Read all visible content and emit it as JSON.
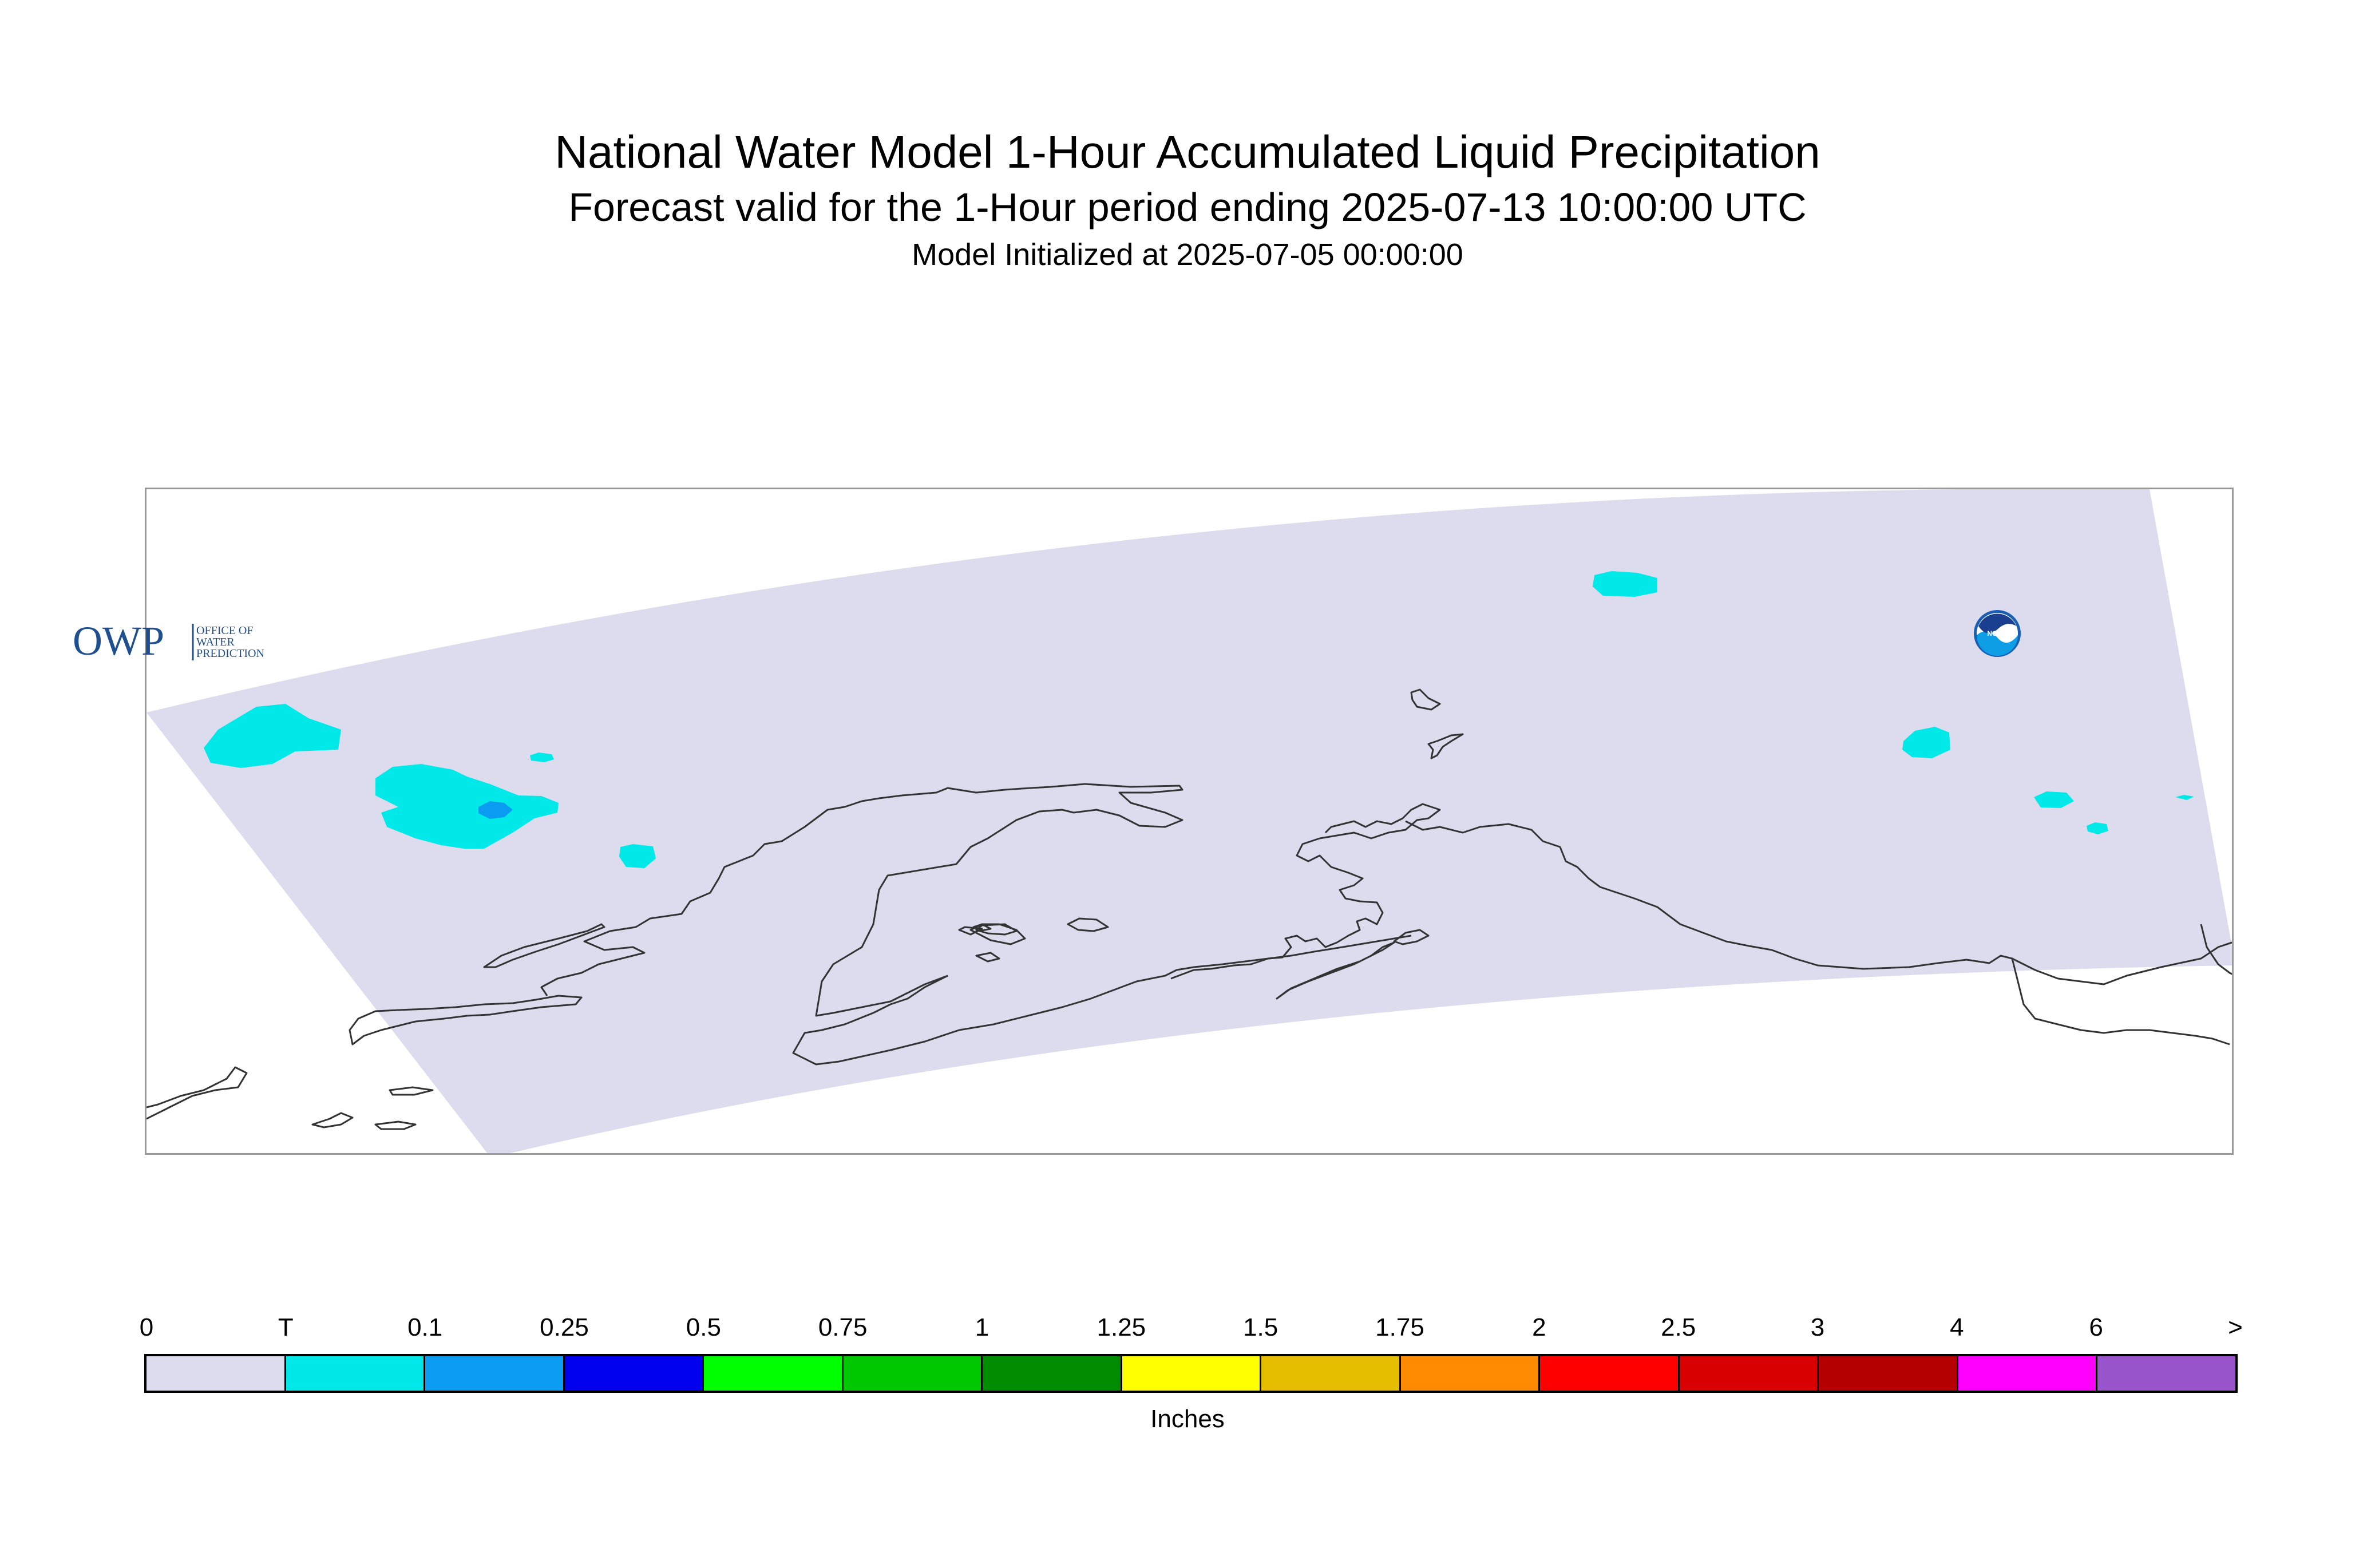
{
  "header": {
    "title": "National Water Model 1-Hour Accumulated Liquid Precipitation",
    "subtitle": "Forecast valid for the 1-Hour period ending 2025-07-13 10:00:00 UTC",
    "init": "Model Initialized at 2025-07-05 00:00:00"
  },
  "map": {
    "domain_fill_color": "#dcdcee",
    "coastline_color": "#333333",
    "precip_areas": [
      {
        "name": "west-coast-cell",
        "category": "T",
        "color": "#00e8e8"
      },
      {
        "name": "central-west-cell",
        "category": "T",
        "color": "#00e8e8"
      },
      {
        "name": "central-west-core",
        "category": "0.1",
        "color": "#0a9cf0"
      },
      {
        "name": "small-west-cell",
        "category": "T",
        "color": "#00e8e8"
      },
      {
        "name": "tiny-west-cell",
        "category": "T",
        "color": "#00e8e8"
      },
      {
        "name": "north-cell",
        "category": "T",
        "color": "#00e8e8"
      },
      {
        "name": "east-cell-1",
        "category": "T",
        "color": "#00e8e8"
      },
      {
        "name": "east-cell-2",
        "category": "T",
        "color": "#00e8e8"
      },
      {
        "name": "east-cell-3",
        "category": "T",
        "color": "#00e8e8"
      },
      {
        "name": "east-cell-4",
        "category": "T",
        "color": "#00e8e8"
      }
    ]
  },
  "logos": {
    "owp_mark": "OWP",
    "owp_text": [
      "OFFICE OF",
      "WATER",
      "PREDICTION"
    ],
    "noaa_text": "NOAA"
  },
  "colorbar": {
    "labels": [
      "0",
      "T",
      "0.1",
      "0.25",
      "0.5",
      "0.75",
      "1",
      "1.25",
      "1.5",
      "1.75",
      "2",
      "2.5",
      "3",
      "4",
      "6",
      ">"
    ],
    "colors": [
      "#dcdcee",
      "#00e8e8",
      "#0a9cf0",
      "#0000ee",
      "#00ff00",
      "#00c800",
      "#008c00",
      "#ffff00",
      "#e6be00",
      "#ff8c00",
      "#ff0000",
      "#d80000",
      "#b40000",
      "#ff00ff",
      "#9955cc"
    ],
    "units": "Inches"
  }
}
